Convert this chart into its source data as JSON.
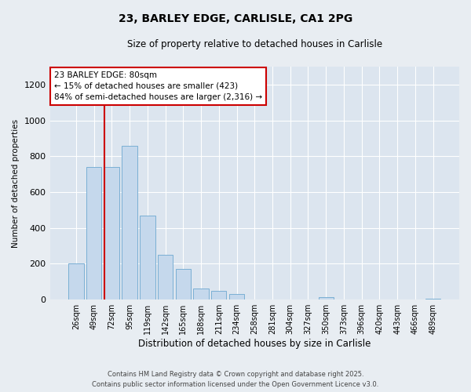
{
  "title": "23, BARLEY EDGE, CARLISLE, CA1 2PG",
  "subtitle": "Size of property relative to detached houses in Carlisle",
  "xlabel": "Distribution of detached houses by size in Carlisle",
  "ylabel": "Number of detached properties",
  "bar_color": "#c5d8ec",
  "bar_edge_color": "#7aafd4",
  "highlight_line_color": "#cc0000",
  "background_color": "#e8edf2",
  "plot_bg_color": "#dce5ef",
  "grid_color": "#ffffff",
  "annotation_text": "23 BARLEY EDGE: 80sqm\n← 15% of detached houses are smaller (423)\n84% of semi-detached houses are larger (2,316) →",
  "property_bin_index": 2,
  "categories": [
    "26sqm",
    "49sqm",
    "72sqm",
    "95sqm",
    "119sqm",
    "142sqm",
    "165sqm",
    "188sqm",
    "211sqm",
    "234sqm",
    "258sqm",
    "281sqm",
    "304sqm",
    "327sqm",
    "350sqm",
    "373sqm",
    "396sqm",
    "420sqm",
    "443sqm",
    "466sqm",
    "489sqm"
  ],
  "values": [
    200,
    740,
    740,
    860,
    470,
    250,
    170,
    60,
    50,
    30,
    0,
    0,
    0,
    0,
    15,
    0,
    0,
    0,
    0,
    0,
    5
  ],
  "ylim": [
    0,
    1300
  ],
  "yticks": [
    0,
    200,
    400,
    600,
    800,
    1000,
    1200
  ],
  "footer_line1": "Contains HM Land Registry data © Crown copyright and database right 2025.",
  "footer_line2": "Contains public sector information licensed under the Open Government Licence v3.0."
}
